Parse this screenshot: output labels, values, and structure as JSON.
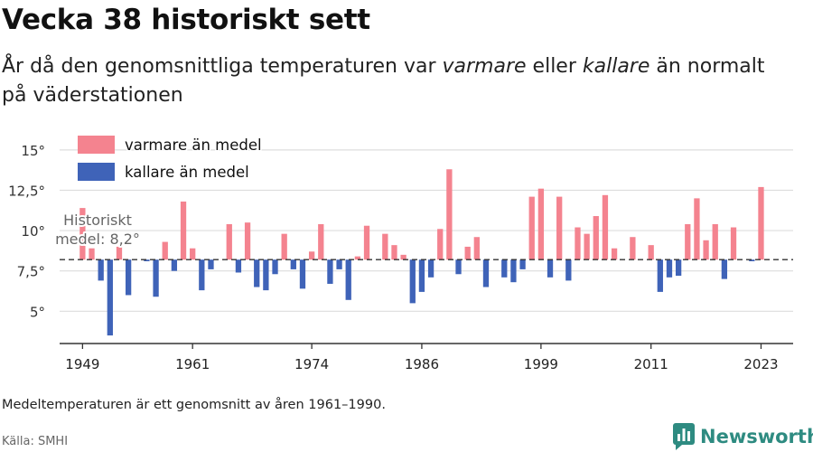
{
  "title": "Vecka 38 historiskt sett",
  "subtitle": {
    "part1": "År då den genomsnittliga temperaturen var ",
    "warm_word": "varmare",
    "part2": " eller ",
    "cold_word": "kallare",
    "part3": " än normalt på väderstationen"
  },
  "footnote": "Medeltemperaturen är ett genomsnitt av åren 1961–1990.",
  "source": "Källa: SMHI",
  "logo": {
    "text": "Newsworthy",
    "icon": "bar-chart-logo-icon",
    "color": "#2e8b81"
  },
  "chart_data": {
    "type": "bar",
    "baseline": 8.2,
    "baseline_label_line1": "Historiskt",
    "baseline_label_line2": "medel: 8,2°",
    "ylim": [
      3,
      16
    ],
    "yticks": [
      5,
      7.5,
      10,
      12.5,
      15
    ],
    "ytick_labels": [
      "5°",
      "7,5°",
      "10°",
      "12,5°",
      "15°"
    ],
    "xticks": [
      1949,
      1961,
      1974,
      1986,
      1999,
      2011,
      2023
    ],
    "xlim": [
      1946.5,
      2026.5
    ],
    "grid": true,
    "legend_position": "top-left",
    "colors": {
      "warm": "#f4838f",
      "cold": "#3f63b8",
      "grid": "#dddddd",
      "baseline": "#333333"
    },
    "legend": [
      {
        "label": "varmare än medel",
        "key": "warm"
      },
      {
        "label": "kallare än medel",
        "key": "cold"
      }
    ],
    "years": [
      1949,
      1950,
      1951,
      1952,
      1953,
      1954,
      1955,
      1956,
      1957,
      1958,
      1959,
      1960,
      1961,
      1962,
      1963,
      1964,
      1965,
      1966,
      1967,
      1968,
      1969,
      1970,
      1971,
      1972,
      1973,
      1974,
      1975,
      1976,
      1977,
      1978,
      1979,
      1980,
      1981,
      1982,
      1983,
      1984,
      1985,
      1986,
      1987,
      1988,
      1989,
      1990,
      1991,
      1992,
      1993,
      1994,
      1995,
      1996,
      1997,
      1998,
      1999,
      2000,
      2001,
      2002,
      2003,
      2004,
      2005,
      2006,
      2007,
      2008,
      2009,
      2010,
      2011,
      2012,
      2013,
      2014,
      2015,
      2016,
      2017,
      2018,
      2019,
      2020,
      2021,
      2022,
      2023
    ],
    "values": [
      11.4,
      8.9,
      6.9,
      3.5,
      9.0,
      6.0,
      8.2,
      8.1,
      5.9,
      9.3,
      7.5,
      11.8,
      8.9,
      6.3,
      7.6,
      8.2,
      10.4,
      7.4,
      10.5,
      6.5,
      6.3,
      7.3,
      9.8,
      7.6,
      6.4,
      8.7,
      10.4,
      6.7,
      7.6,
      5.7,
      8.4,
      10.3,
      8.2,
      9.8,
      9.1,
      8.5,
      5.5,
      6.2,
      7.1,
      10.1,
      13.8,
      7.3,
      9.0,
      9.6,
      6.5,
      8.2,
      7.1,
      6.8,
      7.6,
      12.1,
      12.6,
      7.1,
      12.1,
      6.9,
      10.2,
      9.8,
      10.9,
      12.2,
      8.9,
      8.2,
      9.6,
      8.2,
      9.1,
      6.2,
      7.1,
      7.2,
      10.4,
      12.0,
      9.4,
      10.4,
      7.0,
      10.2,
      8.2,
      8.1,
      12.7
    ]
  }
}
